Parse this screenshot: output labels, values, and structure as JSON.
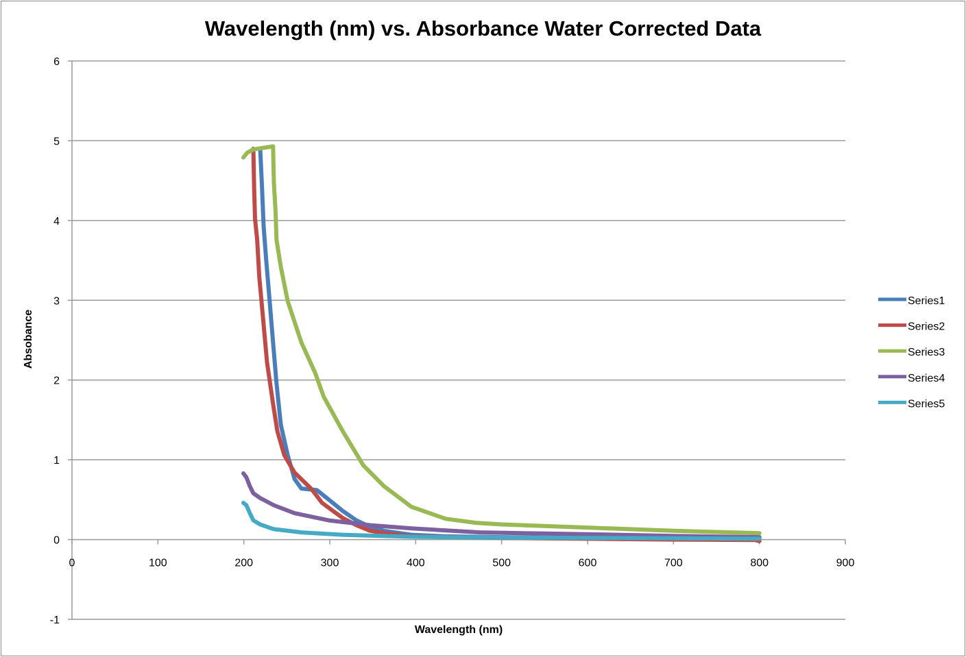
{
  "chart_data": {
    "type": "line",
    "title": "Wavelength (nm) vs. Absorbance Water Corrected Data",
    "xlabel": "Wavelength (nm)",
    "ylabel": "Absobance",
    "xlim": [
      0,
      900
    ],
    "ylim": [
      -1,
      6
    ],
    "xticks": [
      0,
      100,
      200,
      300,
      400,
      500,
      600,
      700,
      800,
      900
    ],
    "yticks": [
      -1,
      0,
      1,
      2,
      3,
      4,
      5,
      6
    ],
    "grid": "horizontal",
    "legend": "right",
    "series": [
      {
        "name": "Series1",
        "color": "#4a7ebb",
        "points": [
          [
            219,
            4.9
          ],
          [
            221,
            4.45
          ],
          [
            223,
            3.93
          ],
          [
            226,
            3.5
          ],
          [
            230,
            2.99
          ],
          [
            234,
            2.47
          ],
          [
            238,
            1.96
          ],
          [
            243,
            1.44
          ],
          [
            251,
            1.06
          ],
          [
            259,
            0.76
          ],
          [
            267,
            0.64
          ],
          [
            285,
            0.62
          ],
          [
            299,
            0.5
          ],
          [
            315,
            0.36
          ],
          [
            331,
            0.24
          ],
          [
            347,
            0.16
          ],
          [
            363,
            0.11
          ],
          [
            395,
            0.06
          ],
          [
            435,
            0.04
          ],
          [
            500,
            0.03
          ],
          [
            600,
            0.02
          ],
          [
            700,
            0.015
          ],
          [
            800,
            0.01
          ]
        ]
      },
      {
        "name": "Series2",
        "color": "#be4b48",
        "points": [
          [
            211,
            4.9
          ],
          [
            212,
            4.4
          ],
          [
            213,
            4.02
          ],
          [
            215.5,
            3.76
          ],
          [
            218,
            3.29
          ],
          [
            222,
            2.82
          ],
          [
            227,
            2.22
          ],
          [
            234,
            1.7
          ],
          [
            239,
            1.36
          ],
          [
            247,
            1.06
          ],
          [
            259,
            0.84
          ],
          [
            279,
            0.63
          ],
          [
            291,
            0.46
          ],
          [
            315,
            0.27
          ],
          [
            331,
            0.18
          ],
          [
            347,
            0.11
          ],
          [
            371,
            0.07
          ],
          [
            395,
            0.04
          ],
          [
            500,
            0.02
          ],
          [
            600,
            0.01
          ],
          [
            700,
            0.0
          ],
          [
            795,
            -0.005
          ],
          [
            800,
            -0.02
          ]
        ]
      },
      {
        "name": "Series3",
        "color": "#98b954",
        "points": [
          [
            199.5,
            4.79
          ],
          [
            204,
            4.85
          ],
          [
            211,
            4.89
          ],
          [
            222,
            4.91
          ],
          [
            234,
            4.93
          ],
          [
            235,
            4.47
          ],
          [
            237,
            4.1
          ],
          [
            238,
            3.76
          ],
          [
            243,
            3.42
          ],
          [
            251,
            2.99
          ],
          [
            267,
            2.47
          ],
          [
            283,
            2.09
          ],
          [
            293,
            1.79
          ],
          [
            315,
            1.36
          ],
          [
            339,
            0.93
          ],
          [
            363,
            0.67
          ],
          [
            395,
            0.41
          ],
          [
            435,
            0.26
          ],
          [
            470,
            0.21
          ],
          [
            500,
            0.19
          ],
          [
            600,
            0.15
          ],
          [
            700,
            0.11
          ],
          [
            800,
            0.08
          ]
        ]
      },
      {
        "name": "Series4",
        "color": "#7d60a0",
        "points": [
          [
            199.5,
            0.83
          ],
          [
            203,
            0.78
          ],
          [
            207,
            0.67
          ],
          [
            211,
            0.58
          ],
          [
            219,
            0.52
          ],
          [
            235,
            0.43
          ],
          [
            259,
            0.33
          ],
          [
            299,
            0.24
          ],
          [
            347,
            0.18
          ],
          [
            395,
            0.14
          ],
          [
            475,
            0.09
          ],
          [
            550,
            0.075
          ],
          [
            634,
            0.06
          ],
          [
            700,
            0.045
          ],
          [
            800,
            0.03
          ]
        ]
      },
      {
        "name": "Series5",
        "color": "#46aac5",
        "points": [
          [
            199.5,
            0.46
          ],
          [
            203,
            0.43
          ],
          [
            207,
            0.33
          ],
          [
            211,
            0.24
          ],
          [
            219,
            0.19
          ],
          [
            235,
            0.13
          ],
          [
            267,
            0.09
          ],
          [
            315,
            0.06
          ],
          [
            395,
            0.035
          ],
          [
            500,
            0.025
          ],
          [
            600,
            0.02
          ],
          [
            700,
            0.015
          ],
          [
            800,
            0.01
          ]
        ]
      }
    ]
  }
}
